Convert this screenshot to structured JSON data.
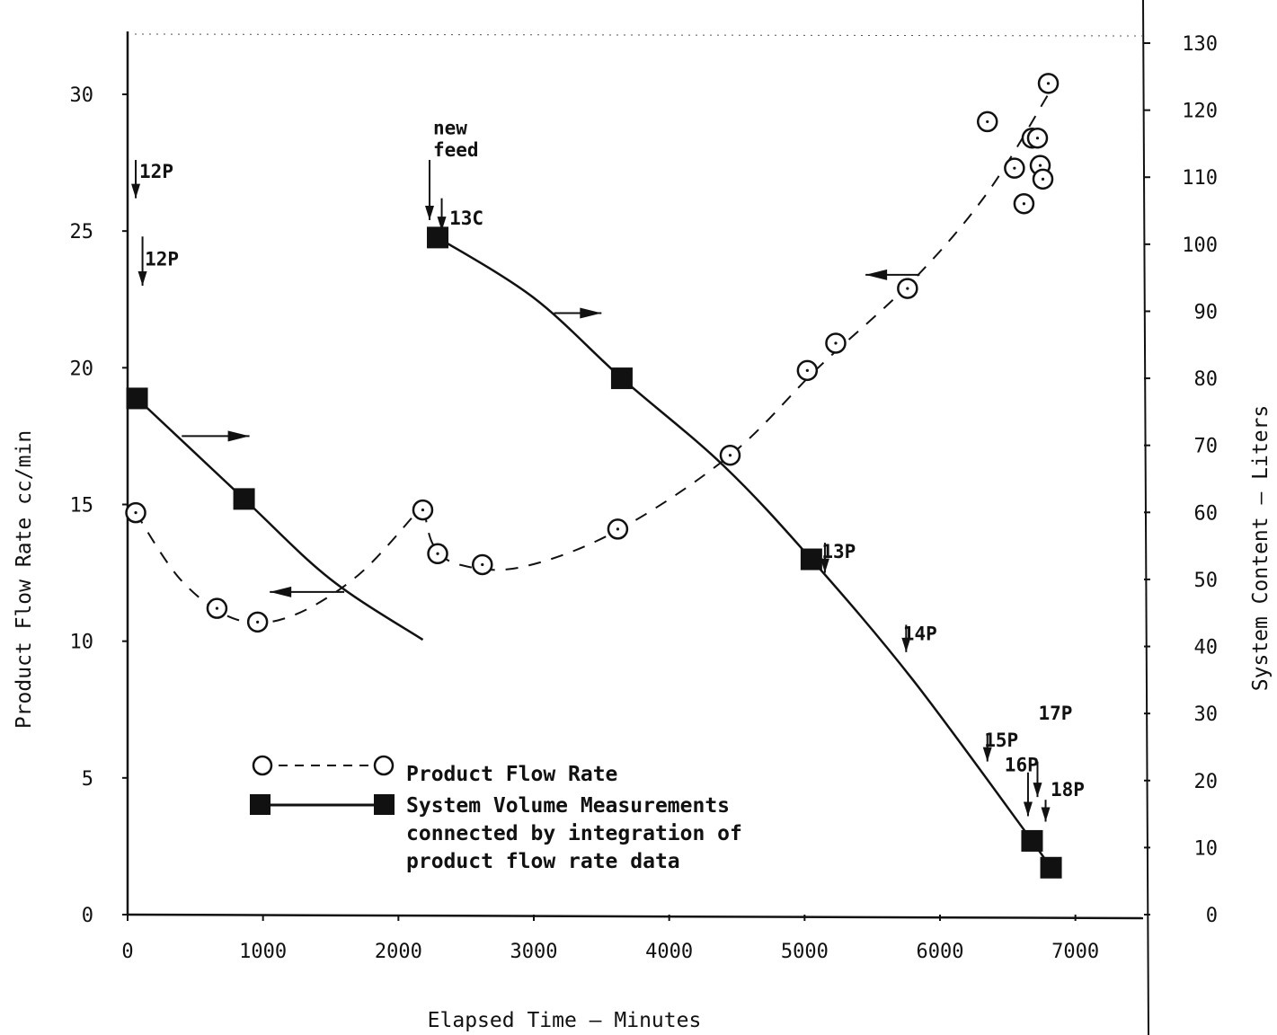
{
  "chart_data": {
    "type": "line",
    "title": "",
    "xlabel": "Elapsed Time — Minutes",
    "ylabel_left": "Product Flow Rate  cc/min",
    "ylabel_right": "System Content — Liters",
    "xlim": [
      0,
      7500
    ],
    "ylim_left": [
      0,
      30
    ],
    "ylim_right": [
      0,
      130
    ],
    "x_ticks": [
      "0",
      "1000",
      "2000",
      "3000",
      "4000",
      "5000",
      "6000",
      "7000"
    ],
    "y_ticks_left": [
      "0",
      "5",
      "10",
      "15",
      "20",
      "25",
      "30"
    ],
    "y_ticks_right": [
      "0",
      "10",
      "20",
      "30",
      "40",
      "50",
      "60",
      "70",
      "80",
      "90",
      "100",
      "110",
      "120",
      "130"
    ],
    "grid": false,
    "legend_position": "bottom-left",
    "legend": [
      {
        "name": "Product Flow Rate",
        "marker": "open-circle",
        "line": "dashed"
      },
      {
        "name": "System Volume Measurements connected by integration of product flow rate data",
        "lines": [
          "System Volume Measurements",
          "connected by integration of",
          "product flow rate data"
        ],
        "marker": "filled-square",
        "line": "solid"
      }
    ],
    "series": [
      {
        "name": "Product Flow Rate",
        "axis": "left",
        "x": [
          60,
          660,
          960,
          2180,
          2290,
          2620,
          3620,
          4450,
          5020,
          5230,
          5760,
          6350,
          6550,
          6620,
          6680,
          6720,
          6740,
          6760,
          6800
        ],
        "y": [
          14.7,
          11.2,
          10.7,
          14.8,
          13.2,
          12.8,
          14.1,
          16.8,
          19.9,
          20.9,
          22.9,
          29.0,
          27.3,
          26.0,
          28.4,
          28.4,
          27.4,
          26.9,
          30.4
        ]
      },
      {
        "name": "System Volume Measurements",
        "axis": "right",
        "x": [
          70,
          860,
          2290,
          3650,
          5050,
          6680,
          6820
        ],
        "y": [
          77,
          62,
          101,
          80,
          53,
          11,
          7
        ]
      }
    ],
    "annotations": [
      {
        "text": "12P",
        "x": 60,
        "y_left": 27.2
      },
      {
        "text": "12P",
        "x": 100,
        "y_left": 24.0
      },
      {
        "text": "new",
        "x": 2230,
        "y_left": 28.8
      },
      {
        "text": "feed",
        "x": 2230,
        "y_left": 28.0
      },
      {
        "text": "13C",
        "x": 2350,
        "y_left": 25.5
      },
      {
        "text": "13P",
        "x": 5100,
        "y_left": 13.3
      },
      {
        "text": "14P",
        "x": 5700,
        "y_left": 10.3
      },
      {
        "text": "15P",
        "x": 6300,
        "y_left": 6.4
      },
      {
        "text": "16P",
        "x": 6450,
        "y_left": 5.5
      },
      {
        "text": "17P",
        "x": 6700,
        "y_left": 7.4
      },
      {
        "text": "18P",
        "x": 6790,
        "y_left": 4.6
      }
    ]
  }
}
